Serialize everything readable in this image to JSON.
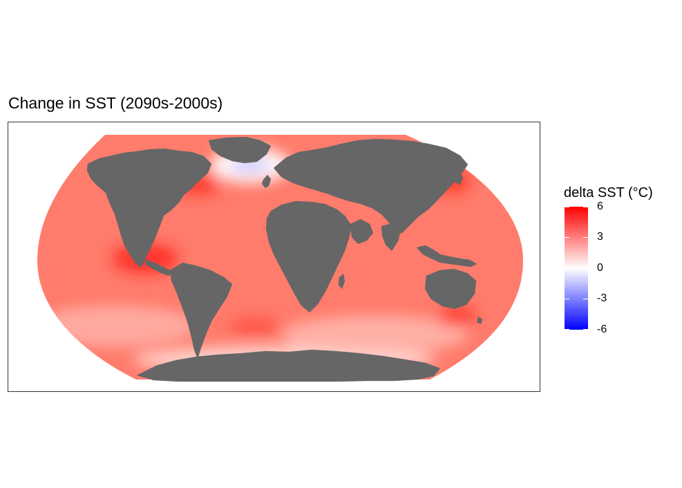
{
  "title": "Change in SST (2090s-2000s)",
  "map": {
    "projection": "robinson",
    "land_color": "#666666",
    "ocean_baseline_color": "#ff7a6a",
    "warm_hotspot_color": "#ff1a12",
    "cold_anomaly_color": "#ffffff",
    "regions": [
      {
        "name": "north-america",
        "fill": "land"
      },
      {
        "name": "greenland",
        "fill": "land"
      },
      {
        "name": "south-america",
        "fill": "land"
      },
      {
        "name": "europe-asia",
        "fill": "land"
      },
      {
        "name": "africa",
        "fill": "land"
      },
      {
        "name": "arabian-peninsula",
        "fill": "land"
      },
      {
        "name": "india",
        "fill": "land"
      },
      {
        "name": "australia",
        "fill": "land"
      },
      {
        "name": "antarctica",
        "fill": "land"
      },
      {
        "name": "north-atlantic-cool-patch",
        "fill": "cool"
      },
      {
        "name": "equatorial-pacific-hotspot",
        "fill": "hot"
      },
      {
        "name": "kuroshio-hotspot",
        "fill": "hot"
      },
      {
        "name": "gulf-stream-hotspot",
        "fill": "hot"
      }
    ]
  },
  "legend": {
    "title": "delta SST (°C)",
    "range": [
      -6,
      6
    ],
    "colors": [
      "#0000ff",
      "#ffffff",
      "#ff0000"
    ],
    "ticks": [
      {
        "value": 6,
        "label": "6"
      },
      {
        "value": 3,
        "label": "3"
      },
      {
        "value": 0,
        "label": "0"
      },
      {
        "value": -3,
        "label": "-3"
      },
      {
        "value": -6,
        "label": "-6"
      }
    ]
  }
}
